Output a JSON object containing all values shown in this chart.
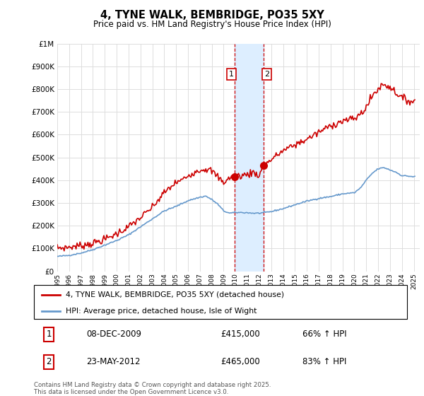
{
  "title": "4, TYNE WALK, BEMBRIDGE, PO35 5XY",
  "subtitle": "Price paid vs. HM Land Registry's House Price Index (HPI)",
  "legend_property": "4, TYNE WALK, BEMBRIDGE, PO35 5XY (detached house)",
  "legend_hpi": "HPI: Average price, detached house, Isle of Wight",
  "copyright": "Contains HM Land Registry data © Crown copyright and database right 2025.\nThis data is licensed under the Open Government Licence v3.0.",
  "sale1_label": "1",
  "sale1_date": "08-DEC-2009",
  "sale1_price": "£415,000",
  "sale1_hpi": "66% ↑ HPI",
  "sale1_year": 2009.93,
  "sale2_label": "2",
  "sale2_date": "23-MAY-2012",
  "sale2_price": "£465,000",
  "sale2_hpi": "83% ↑ HPI",
  "sale2_year": 2012.38,
  "ylim": [
    0,
    1000000
  ],
  "xlim_start": 1995,
  "xlim_end": 2025.5,
  "property_color": "#cc0000",
  "hpi_color": "#6699cc",
  "highlight_fill": "#ddeeff",
  "highlight_edge": "#cc0000",
  "grid_color": "#dddddd",
  "background_color": "#ffffff"
}
